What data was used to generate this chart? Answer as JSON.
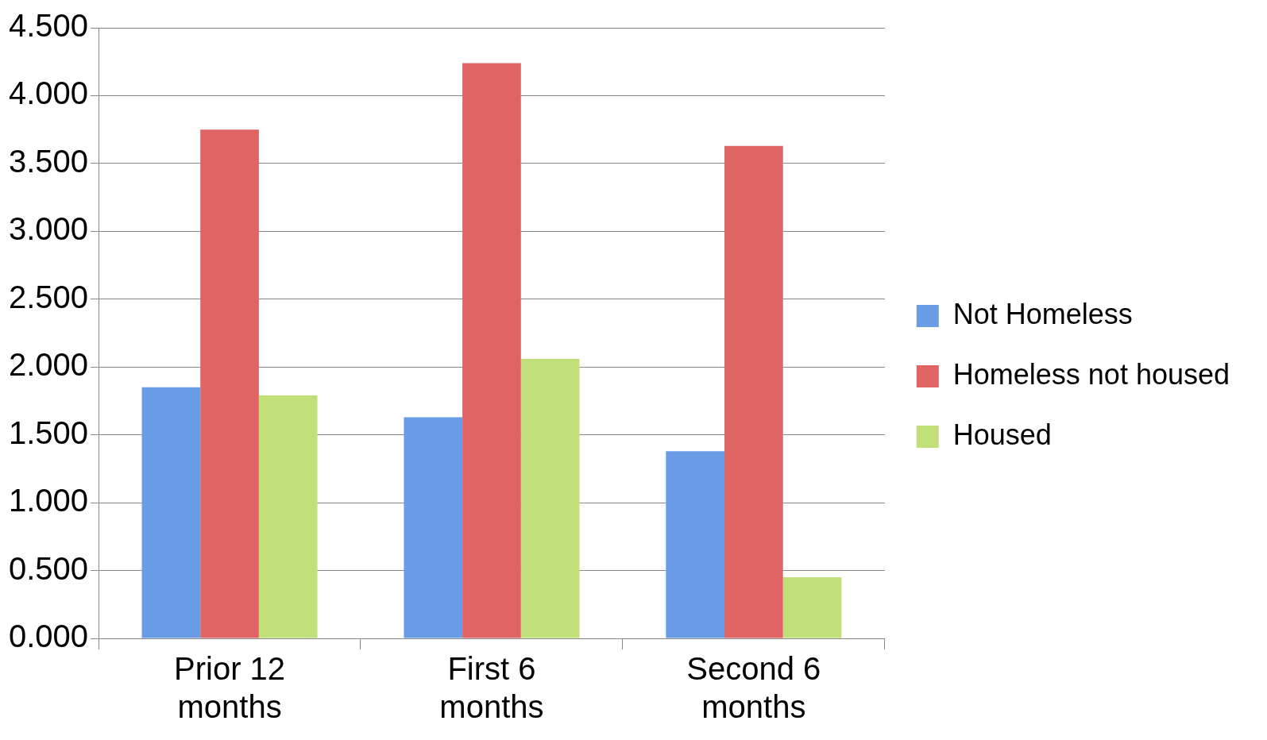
{
  "chart_data": {
    "type": "bar",
    "categories": [
      "Prior 12 months",
      "First 6 months",
      "Second 6 months"
    ],
    "series": [
      {
        "name": "Not Homeless",
        "color": "#6a9ce6",
        "values": [
          1.85,
          1.63,
          1.38
        ]
      },
      {
        "name": "Homeless not housed",
        "color": "#e06464",
        "values": [
          3.75,
          4.24,
          3.63
        ]
      },
      {
        "name": "Housed",
        "color": "#c2e07a",
        "values": [
          1.79,
          2.06,
          0.45
        ]
      }
    ],
    "ylim": [
      0,
      4.5
    ],
    "yticks": [
      {
        "value": 0,
        "label": "0.000"
      },
      {
        "value": 0.5,
        "label": "0.500"
      },
      {
        "value": 1,
        "label": "1.000"
      },
      {
        "value": 1.5,
        "label": "1.500"
      },
      {
        "value": 2,
        "label": "2.000"
      },
      {
        "value": 2.5,
        "label": "2.500"
      },
      {
        "value": 3,
        "label": "3.000"
      },
      {
        "value": 3.5,
        "label": "3.500"
      },
      {
        "value": 4,
        "label": "4.000"
      },
      {
        "value": 4.5,
        "label": "4.500"
      }
    ],
    "grid": "y",
    "legend": "right"
  }
}
